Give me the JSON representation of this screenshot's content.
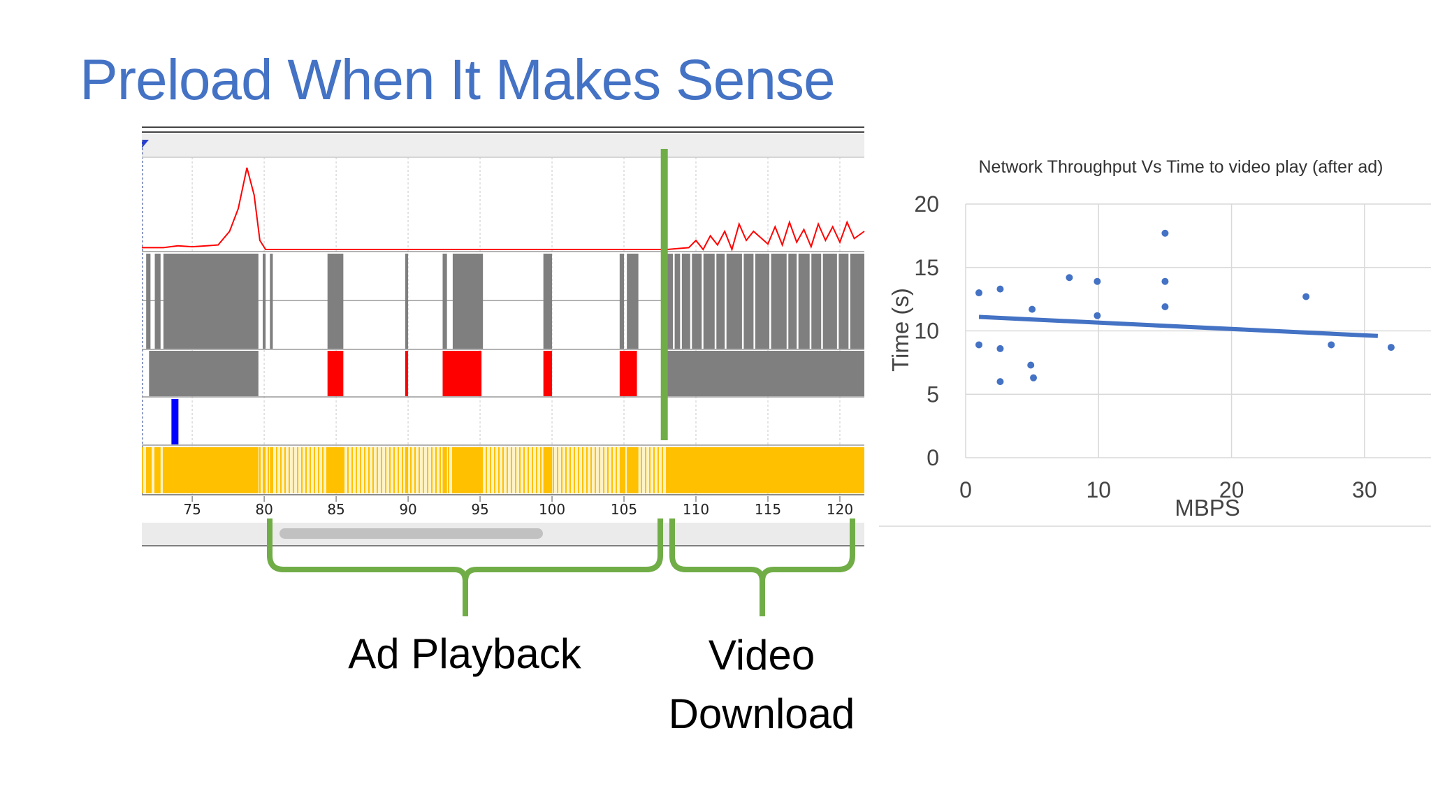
{
  "slide": {
    "title": "Preload When It Makes Sense",
    "captions": {
      "ad": "Ad Playback",
      "video_line1": "Video",
      "video_line2": "Download"
    }
  },
  "colors": {
    "title": "#4472c4",
    "bracket": "#70ad47",
    "throughput_line": "#ff0000",
    "packet_gray": "#7f7f7f",
    "request_red": "#ff0000",
    "marker_blue": "#0000ff",
    "buffer_yellow": "#ffc000",
    "scatter_point": "#4472c4"
  },
  "chart_data": [
    {
      "type": "line",
      "x_ticks": [
        75,
        80,
        85,
        90,
        95,
        100,
        105,
        110,
        115,
        120
      ],
      "xlim": [
        71.5,
        121.7
      ],
      "divider_x": 107.8,
      "throughput_shape": [
        [
          71.5,
          0.02
        ],
        [
          73,
          0.02
        ],
        [
          74,
          0.04
        ],
        [
          75,
          0.03
        ],
        [
          76,
          0.04
        ],
        [
          76.8,
          0.05
        ],
        [
          77.6,
          0.2
        ],
        [
          78.2,
          0.45
        ],
        [
          78.8,
          0.9
        ],
        [
          79.3,
          0.6
        ],
        [
          79.7,
          0.1
        ],
        [
          80.1,
          0.0
        ],
        [
          108,
          0.0
        ],
        [
          109.5,
          0.02
        ],
        [
          110,
          0.1
        ],
        [
          110.5,
          0.0
        ],
        [
          111,
          0.15
        ],
        [
          111.5,
          0.05
        ],
        [
          112,
          0.2
        ],
        [
          112.5,
          0.0
        ],
        [
          113,
          0.28
        ],
        [
          113.5,
          0.1
        ],
        [
          114,
          0.2
        ],
        [
          115,
          0.06
        ],
        [
          115.5,
          0.25
        ],
        [
          116,
          0.05
        ],
        [
          116.5,
          0.3
        ],
        [
          117,
          0.08
        ],
        [
          117.5,
          0.22
        ],
        [
          118,
          0.03
        ],
        [
          118.5,
          0.28
        ],
        [
          119,
          0.1
        ],
        [
          119.5,
          0.25
        ],
        [
          120,
          0.08
        ],
        [
          120.5,
          0.3
        ],
        [
          121,
          0.12
        ],
        [
          121.7,
          0.2
        ]
      ],
      "packet_bursts": [
        [
          71.8,
          72.1
        ],
        [
          72.4,
          72.8
        ],
        [
          73.0,
          79.6
        ],
        [
          79.9,
          80.1
        ],
        [
          80.4,
          80.6
        ],
        [
          84.4,
          85.5
        ],
        [
          89.8,
          90.0
        ],
        [
          92.4,
          92.7
        ],
        [
          93.1,
          95.2
        ],
        [
          99.4,
          100.0
        ],
        [
          104.7,
          105.0
        ],
        [
          105.2,
          106.0
        ],
        [
          108.0,
          121.7
        ]
      ],
      "request_blocks": [
        [
          72.0,
          79.6
        ],
        [
          84.4,
          85.5
        ],
        [
          89.8,
          90.0
        ],
        [
          92.4,
          95.1
        ],
        [
          99.4,
          100.0
        ],
        [
          104.7,
          105.9
        ]
      ],
      "request_block_video": [
        108.0,
        121.7
      ],
      "marker_x": 73.8
    },
    {
      "type": "scatter",
      "title": "Network Throughput Vs Time to video play (after ad)",
      "xlabel": "MBPS",
      "ylabel": "Time (s)",
      "x_ticks": [
        0,
        10,
        20,
        30
      ],
      "y_ticks": [
        0,
        5,
        10,
        15,
        20
      ],
      "xlim": [
        0,
        35
      ],
      "ylim": [
        0,
        20
      ],
      "grid": true,
      "points": [
        [
          1,
          13
        ],
        [
          1,
          8.9
        ],
        [
          2.6,
          13.3
        ],
        [
          2.6,
          8.6
        ],
        [
          2.6,
          6
        ],
        [
          5,
          11.7
        ],
        [
          4.9,
          7.3
        ],
        [
          5.1,
          6.3
        ],
        [
          7.8,
          14.2
        ],
        [
          9.9,
          13.9
        ],
        [
          9.9,
          11.2
        ],
        [
          15,
          17.7
        ],
        [
          15,
          13.9
        ],
        [
          15,
          11.9
        ],
        [
          25.6,
          12.7
        ],
        [
          27.5,
          8.9
        ],
        [
          32,
          8.7
        ]
      ],
      "trendline": {
        "x": [
          1,
          31
        ],
        "y": [
          11.1,
          9.6
        ]
      }
    }
  ]
}
